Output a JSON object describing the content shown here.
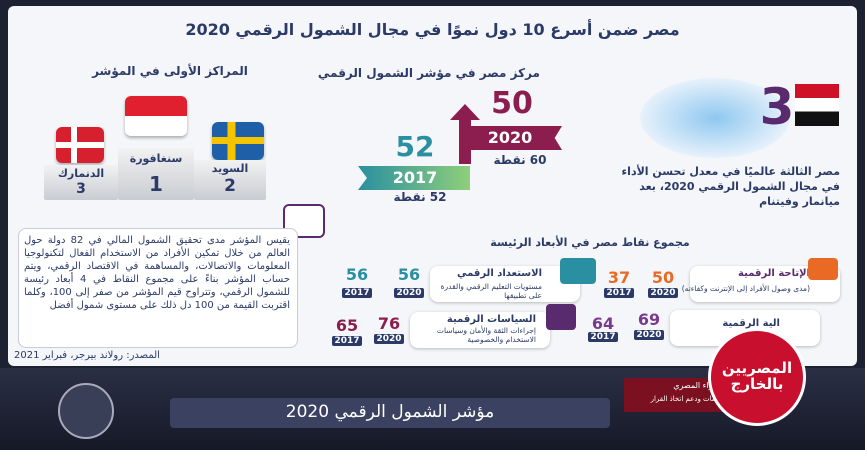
{
  "header": {
    "title": "مصر ضمن أسرع 10 دول نموًا في مجال الشمول الرقمي 2020"
  },
  "top_ranks": {
    "heading": "المراكز الأولى في المؤشر",
    "countries": [
      {
        "name": "سنغافورة",
        "rank": "1"
      },
      {
        "name": "السويد",
        "rank": "2"
      },
      {
        "name": "الدنمارك",
        "rank": "3"
      }
    ]
  },
  "egypt_rank": {
    "heading": "مركز مصر في مؤشر الشمول الرقمي",
    "current": {
      "rank": "50",
      "year": "2020",
      "points": "60 نقطة"
    },
    "previous": {
      "rank": "52",
      "year": "2017",
      "points": "52 نقطة"
    }
  },
  "improvement": {
    "rank": "3",
    "text": "مصر الثالثة عالميًا في معدل تحسن الأداء في مجال الشمول الرقمي 2020، بعد ميانمار وفيتنام"
  },
  "description": "يقيس المؤشر مدى تحقيق الشمول المالي في 82 دولة حول العالم من خلال تمكين الأفراد من الاستخدام الفعال لتكنولوجيا المعلومات والاتصالات، والمساهمة في الاقتصاد الرقمي، ويتم حساب المؤشر بناءً على مجموع النقاط في 4 أبعاد رئيسة للشمول الرقمي، وتتراوح قيم المؤشر من صفر إلى 100، وكلما اقتربت القيمة من 100 دل ذلك على مستوى شمول أفضل",
  "dimensions": {
    "heading": "مجموع نقاط مصر في الأبعاد الرئيسة",
    "items": [
      {
        "title": "الإتاحة الرقمية",
        "detail": "(مدى وصول الأفراد إلى الإنترنت وكفاءته)",
        "score_2020": "50",
        "score_2017": "37"
      },
      {
        "title": "الاستعداد الرقمي",
        "detail": "مستويات التعليم الرقمي والقدرة على تطبيقها",
        "score_2020": "56",
        "score_2017": "56"
      },
      {
        "title": "الية الرقمية",
        "detail": "(الرقمية)",
        "score_2020": "69",
        "score_2017": "64"
      },
      {
        "title": "السياسات الرقمية",
        "detail": "إجراءات الثقة والأمان وسياسات الاستخدام والخصوصية",
        "score_2020": "76",
        "score_2017": "65"
      }
    ],
    "year_2020": "2020",
    "year_2017": "2017"
  },
  "source": "المصدر: رولاند بيرجر، فبراير 2021",
  "footer": {
    "caption": "مؤشر الشمول الرقمي 2020",
    "org_line1": "مجلس الوزراء المصري",
    "org_line2": "مركز المعلومات ودعم اتخاذ القرار",
    "logo": "المصريين بالخارج"
  }
}
